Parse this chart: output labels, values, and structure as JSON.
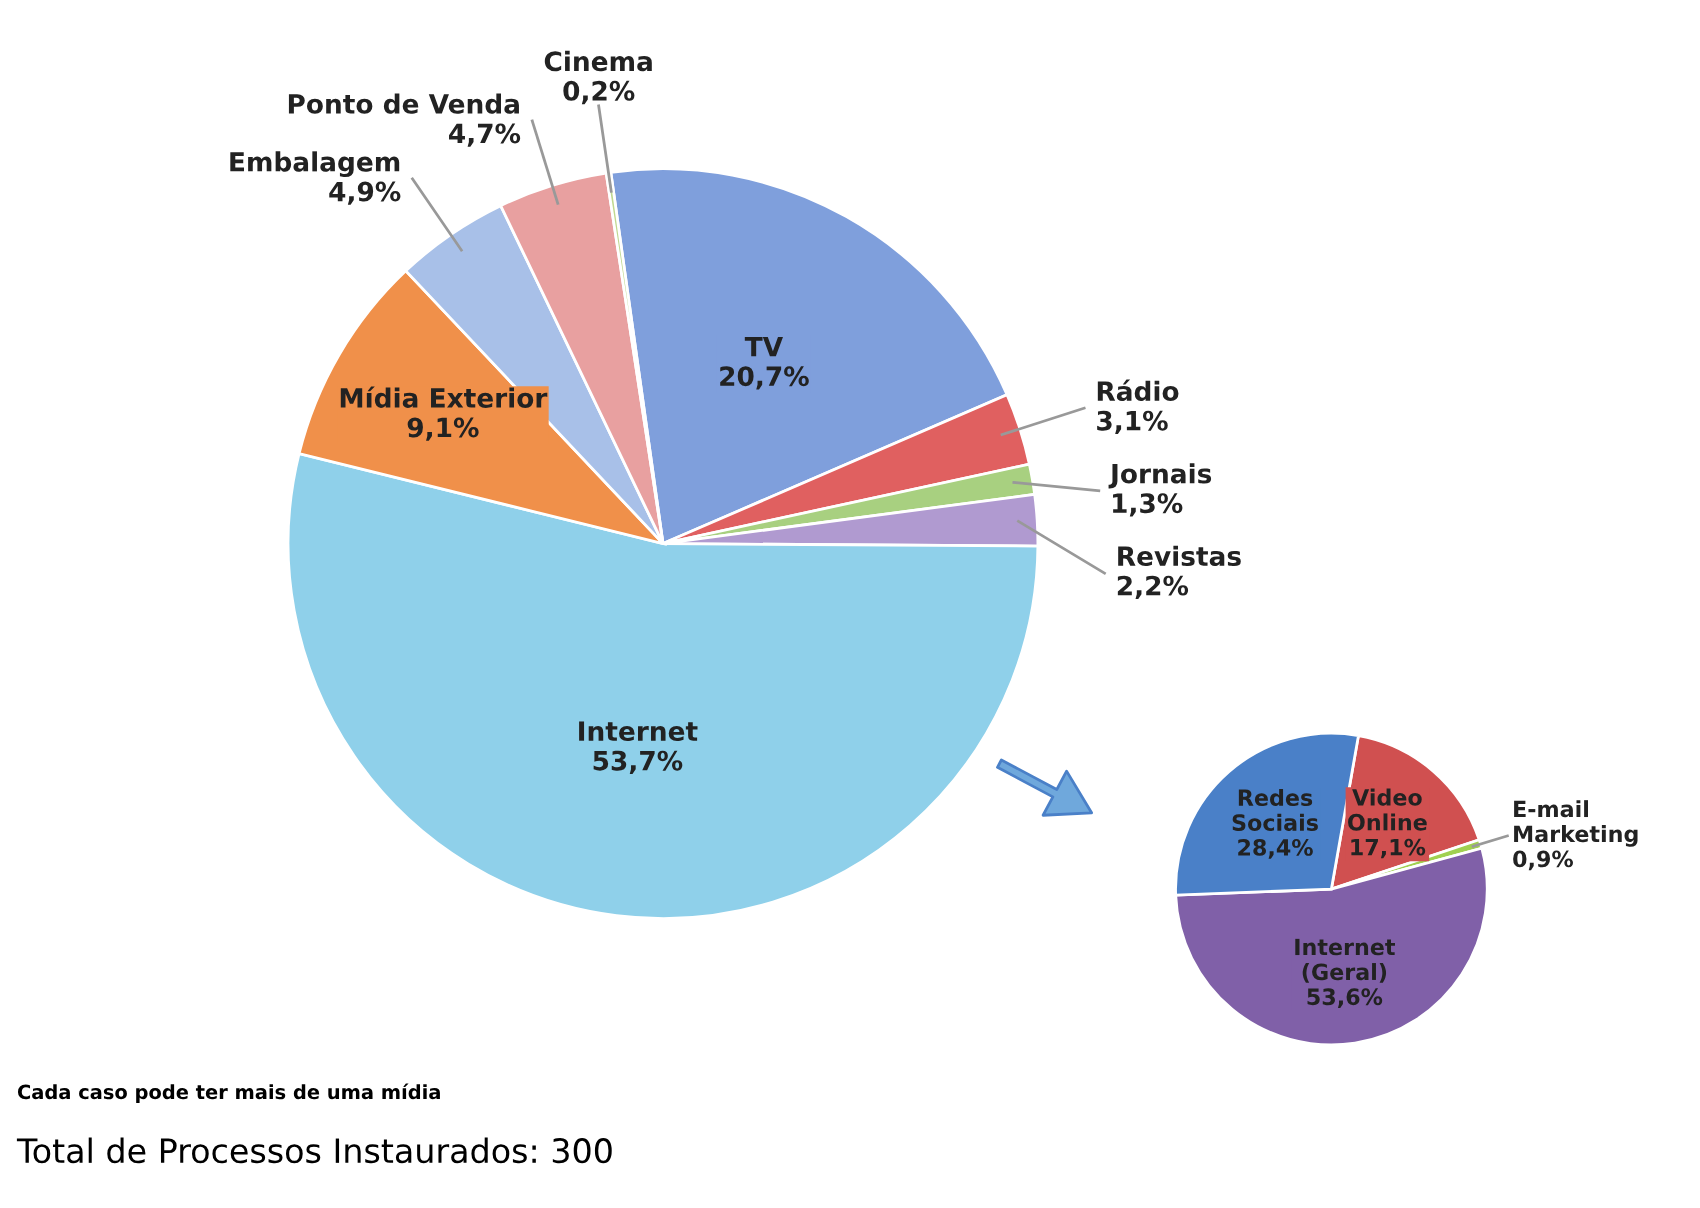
{
  "chart_data": [
    {
      "type": "pie",
      "categories": [
        "TV",
        "Rádio",
        "Jornais",
        "Revistas",
        "Internet",
        "Mídia Exterior",
        "Embalagem",
        "Ponto de Venda",
        "Cinema"
      ],
      "values": [
        20.7,
        3.1,
        1.3,
        2.2,
        53.7,
        9.1,
        4.9,
        4.7,
        0.2
      ],
      "value_labels": [
        "20,7%",
        "3,1%",
        "1,3%",
        "2,2%",
        "53,7%",
        "9,1%",
        "4,9%",
        "4,7%",
        "0,2%"
      ],
      "colors": [
        "#7f9fdc",
        "#e06060",
        "#a8d080",
        "#b09ad0",
        "#8fd0ea",
        "#f0904a",
        "#a8c0e8",
        "#e8a0a0",
        "#c0d890"
      ],
      "annotations": [
        "Cada caso pode ter mais de uma mídia",
        "Total de Processos Instaurados: 300"
      ]
    },
    {
      "type": "pie",
      "categories": [
        "Video\nOnline",
        "E-mail\nMarketing",
        "Internet\n(Geral)",
        "Redes\nSociais"
      ],
      "values": [
        17.1,
        0.9,
        53.6,
        28.4
      ],
      "value_labels": [
        "17,1%",
        "0,9%",
        "53,6%",
        "28,4%"
      ],
      "colors": [
        "#d05050",
        "#a0d050",
        "#8060a8",
        "#4a80c8"
      ]
    }
  ]
}
